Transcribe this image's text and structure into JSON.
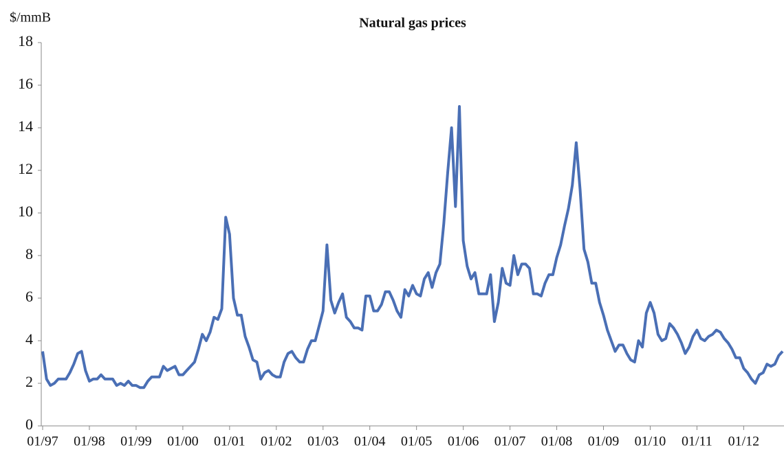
{
  "chart_data": {
    "type": "line",
    "title": "Natural gas prices",
    "y_label": "$/mmB",
    "x": [
      "01/97",
      "02/97",
      "03/97",
      "04/97",
      "05/97",
      "06/97",
      "07/97",
      "08/97",
      "09/97",
      "10/97",
      "11/97",
      "12/97",
      "01/98",
      "02/98",
      "03/98",
      "04/98",
      "05/98",
      "06/98",
      "07/98",
      "08/98",
      "09/98",
      "10/98",
      "11/98",
      "12/98",
      "01/99",
      "02/99",
      "03/99",
      "04/99",
      "05/99",
      "06/99",
      "07/99",
      "08/99",
      "09/99",
      "10/99",
      "11/99",
      "12/99",
      "01/00",
      "02/00",
      "03/00",
      "04/00",
      "05/00",
      "06/00",
      "07/00",
      "08/00",
      "09/00",
      "10/00",
      "11/00",
      "12/00",
      "01/01",
      "02/01",
      "03/01",
      "04/01",
      "05/01",
      "06/01",
      "07/01",
      "08/01",
      "09/01",
      "10/01",
      "11/01",
      "12/01",
      "01/02",
      "02/02",
      "03/02",
      "04/02",
      "05/02",
      "06/02",
      "07/02",
      "08/02",
      "09/02",
      "10/02",
      "11/02",
      "12/02",
      "01/03",
      "02/03",
      "03/03",
      "04/03",
      "05/03",
      "06/03",
      "07/03",
      "08/03",
      "09/03",
      "10/03",
      "11/03",
      "12/03",
      "01/04",
      "02/04",
      "03/04",
      "04/04",
      "05/04",
      "06/04",
      "07/04",
      "08/04",
      "09/04",
      "10/04",
      "11/04",
      "12/04",
      "01/05",
      "02/05",
      "03/05",
      "04/05",
      "05/05",
      "06/05",
      "07/05",
      "08/05",
      "09/05",
      "10/05",
      "11/05",
      "12/05",
      "01/06",
      "02/06",
      "03/06",
      "04/06",
      "05/06",
      "06/06",
      "07/06",
      "08/06",
      "09/06",
      "10/06",
      "11/06",
      "12/06",
      "01/07",
      "02/07",
      "03/07",
      "04/07",
      "05/07",
      "06/07",
      "07/07",
      "08/07",
      "09/07",
      "10/07",
      "11/07",
      "12/07",
      "01/08",
      "02/08",
      "03/08",
      "04/08",
      "05/08",
      "06/08",
      "07/08",
      "08/08",
      "09/08",
      "10/08",
      "11/08",
      "12/08",
      "01/09",
      "02/09",
      "03/09",
      "04/09",
      "05/09",
      "06/09",
      "07/09",
      "08/09",
      "09/09",
      "10/09",
      "11/09",
      "12/09",
      "01/10",
      "02/10",
      "03/10",
      "04/10",
      "05/10",
      "06/10",
      "07/10",
      "08/10",
      "09/10",
      "10/10",
      "11/10",
      "12/10",
      "01/11",
      "02/11",
      "03/11",
      "04/11",
      "05/11",
      "06/11",
      "07/11",
      "08/11",
      "09/11",
      "10/11",
      "11/11",
      "12/11",
      "01/12",
      "02/12",
      "03/12",
      "04/12",
      "05/12",
      "06/12",
      "07/12",
      "08/12",
      "09/12",
      "10/12",
      "11/12"
    ],
    "series": [
      {
        "name": "Natural gas price",
        "color": "#4a6fb5",
        "values": [
          3.5,
          2.2,
          1.9,
          2.0,
          2.2,
          2.2,
          2.2,
          2.5,
          2.9,
          3.4,
          3.5,
          2.6,
          2.1,
          2.2,
          2.2,
          2.4,
          2.2,
          2.2,
          2.2,
          1.9,
          2.0,
          1.9,
          2.1,
          1.9,
          1.9,
          1.8,
          1.8,
          2.1,
          2.3,
          2.3,
          2.3,
          2.8,
          2.6,
          2.7,
          2.8,
          2.4,
          2.4,
          2.6,
          2.8,
          3.0,
          3.6,
          4.3,
          4.0,
          4.4,
          5.1,
          5.0,
          5.5,
          9.8,
          9.0,
          6.0,
          5.2,
          5.2,
          4.2,
          3.7,
          3.1,
          3.0,
          2.2,
          2.5,
          2.6,
          2.4,
          2.3,
          2.3,
          3.0,
          3.4,
          3.5,
          3.2,
          3.0,
          3.0,
          3.6,
          4.0,
          4.0,
          4.7,
          5.4,
          8.5,
          5.9,
          5.3,
          5.8,
          6.2,
          5.1,
          4.9,
          4.6,
          4.6,
          4.5,
          6.1,
          6.1,
          5.4,
          5.4,
          5.7,
          6.3,
          6.3,
          5.9,
          5.4,
          5.1,
          6.4,
          6.1,
          6.6,
          6.2,
          6.1,
          6.9,
          7.2,
          6.5,
          7.2,
          7.6,
          9.5,
          11.9,
          14.0,
          10.3,
          15.0,
          8.7,
          7.5,
          6.9,
          7.2,
          6.2,
          6.2,
          6.2,
          7.1,
          4.9,
          5.8,
          7.4,
          6.7,
          6.6,
          8.0,
          7.1,
          7.6,
          7.6,
          7.4,
          6.2,
          6.2,
          6.1,
          6.7,
          7.1,
          7.1,
          7.9,
          8.5,
          9.4,
          10.2,
          11.3,
          13.3,
          11.1,
          8.3,
          7.7,
          6.7,
          6.7,
          5.8,
          5.2,
          4.5,
          4.0,
          3.5,
          3.8,
          3.8,
          3.4,
          3.1,
          3.0,
          4.0,
          3.7,
          5.3,
          5.8,
          5.3,
          4.3,
          4.0,
          4.1,
          4.8,
          4.6,
          4.3,
          3.9,
          3.4,
          3.7,
          4.2,
          4.5,
          4.1,
          4.0,
          4.2,
          4.3,
          4.5,
          4.4,
          4.1,
          3.9,
          3.6,
          3.2,
          3.2,
          2.7,
          2.5,
          2.2,
          2.0,
          2.4,
          2.5,
          2.9,
          2.8,
          2.9,
          3.3,
          3.5
        ]
      }
    ],
    "xticks": [
      "01/97",
      "01/98",
      "01/99",
      "01/00",
      "01/01",
      "01/02",
      "01/03",
      "01/04",
      "01/05",
      "01/06",
      "01/07",
      "01/08",
      "01/09",
      "01/10",
      "01/11",
      "01/12"
    ],
    "ylim": [
      0,
      18
    ],
    "yticks": [
      0,
      2,
      4,
      6,
      8,
      10,
      12,
      14,
      16,
      18
    ],
    "grid": false
  }
}
